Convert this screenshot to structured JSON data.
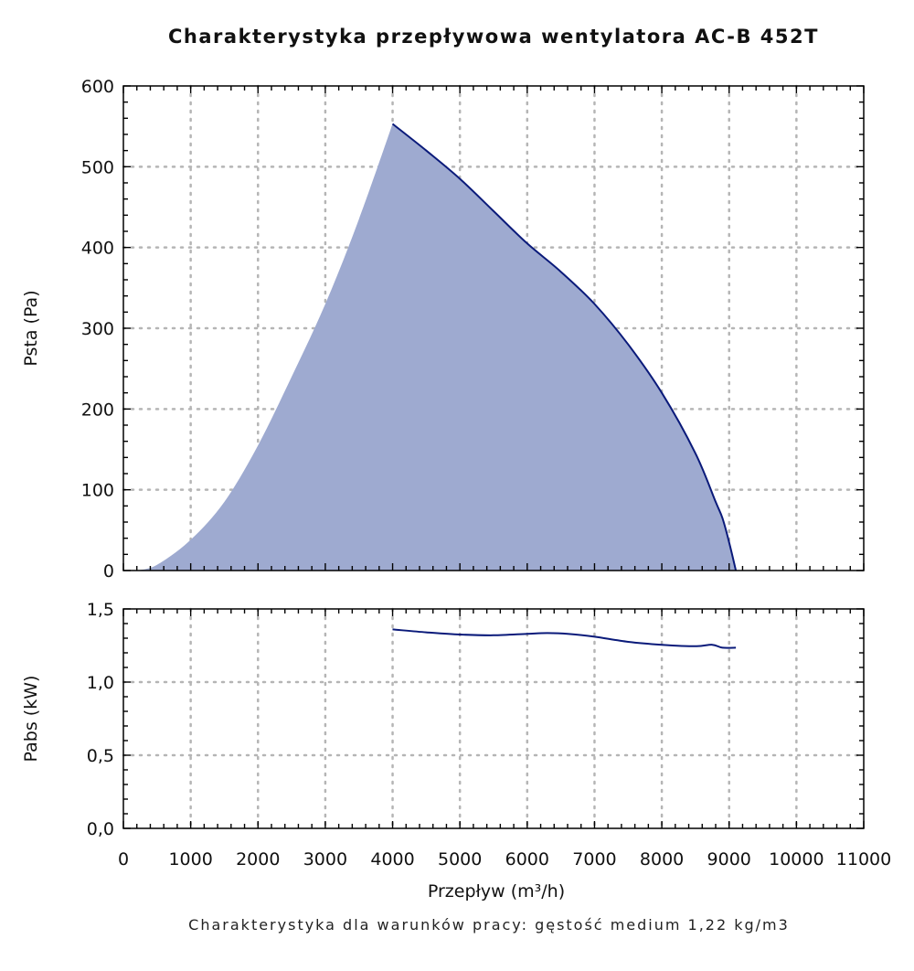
{
  "chart_data": {
    "type": "area",
    "title": "Charakterystyka przepływowa wentylatora AC-B 452T",
    "xlabel": "Przepływ (m³/h)",
    "note": "Charakterystyka dla warunków pracy: gęstość medium 1,22 kg/m3",
    "xlim": [
      0,
      11000
    ],
    "x_ticks": [
      "0",
      "1000",
      "2000",
      "3000",
      "4000",
      "5000",
      "6000",
      "7000",
      "8000",
      "9000",
      "10000",
      "11000"
    ],
    "grid": true,
    "colors": {
      "fill": "#9eaad0",
      "line": "#0a1a7a",
      "grid": "#b5b5b5"
    },
    "panels": [
      {
        "id": "pressure",
        "type": "area",
        "ylabel": "Psta (Pa)",
        "ylim": [
          0,
          600
        ],
        "y_ticks": [
          "0",
          "100",
          "200",
          "300",
          "400",
          "500",
          "600"
        ],
        "boundary": [
          [
            200,
            0
          ],
          [
            500,
            7
          ],
          [
            1000,
            38
          ],
          [
            1500,
            85
          ],
          [
            2000,
            155
          ],
          [
            2500,
            240
          ],
          [
            3000,
            330
          ],
          [
            3500,
            435
          ],
          [
            4000,
            553
          ]
        ],
        "series": [
          {
            "x": [
              4000,
              4500,
              5000,
              5500,
              6000,
              6500,
              7000,
              7500,
              8000,
              8500,
              8800,
              8900,
              9000,
              9100
            ],
            "y": [
              553,
              520,
              485,
              445,
              405,
              370,
              330,
              280,
              220,
              145,
              85,
              65,
              35,
              0
            ]
          }
        ]
      },
      {
        "id": "power",
        "type": "line",
        "ylabel": "Pabs (kW)",
        "ylim": [
          0,
          1.5
        ],
        "y_ticks": [
          "0,0",
          "0,5",
          "1,0",
          "1,5"
        ],
        "series": [
          {
            "x": [
              4000,
              4500,
              5000,
              5500,
              6000,
              6300,
              6600,
              7000,
              7500,
              8000,
              8500,
              8750,
              8900,
              9100
            ],
            "y": [
              1.36,
              1.34,
              1.325,
              1.32,
              1.33,
              1.335,
              1.33,
              1.31,
              1.275,
              1.255,
              1.245,
              1.255,
              1.235,
              1.235
            ]
          }
        ]
      }
    ]
  }
}
